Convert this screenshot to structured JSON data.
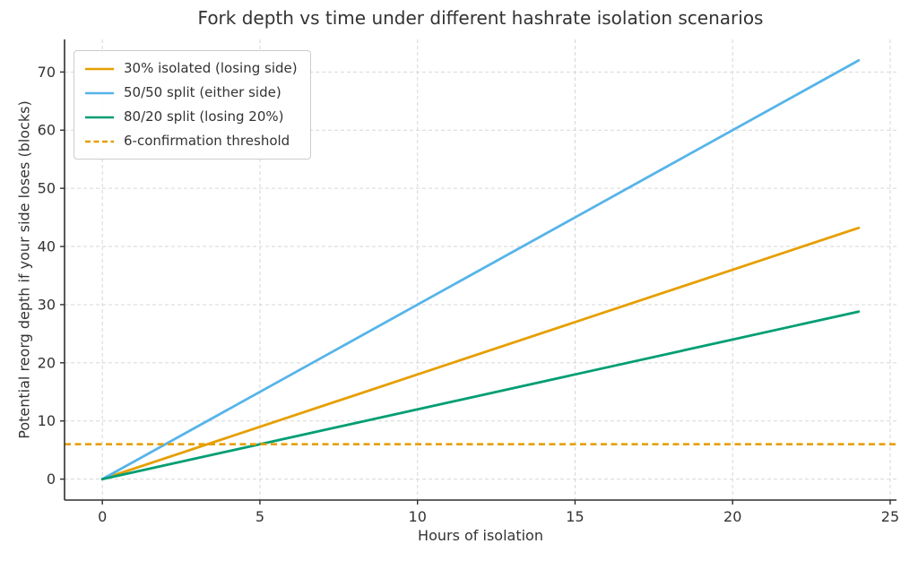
{
  "colors": {
    "background": "#ffffff",
    "text": "#333333",
    "grid": "#d7d7d7",
    "spine": "#2f2f2f",
    "legend_border": "#cccccc"
  },
  "chart_data": {
    "type": "line",
    "title": "Fork depth vs time under different hashrate isolation scenarios",
    "xlabel": "Hours of isolation",
    "ylabel": "Potential reorg depth if your side loses (blocks)",
    "xlim": [
      -1.2,
      25.2
    ],
    "ylim": [
      -3.6,
      75.6
    ],
    "xticks": [
      0,
      5,
      10,
      15,
      20,
      25
    ],
    "yticks": [
      0,
      10,
      20,
      30,
      40,
      50,
      60,
      70
    ],
    "grid": true,
    "legend_position": "upper-left",
    "series": [
      {
        "name": "30% isolated (losing side)",
        "color": "#e69f00",
        "style": "solid",
        "x": [
          0,
          24
        ],
        "y": [
          0,
          43.2
        ]
      },
      {
        "name": "50/50 split (either side)",
        "color": "#56b4e9",
        "style": "solid",
        "x": [
          0,
          24
        ],
        "y": [
          0,
          72
        ]
      },
      {
        "name": "80/20 split (losing 20%)",
        "color": "#009e73",
        "style": "solid",
        "x": [
          0,
          24
        ],
        "y": [
          0,
          28.8
        ]
      }
    ],
    "threshold": {
      "name": "6-confirmation threshold",
      "color": "#e69f00",
      "style": "dashed",
      "y": 6
    }
  }
}
